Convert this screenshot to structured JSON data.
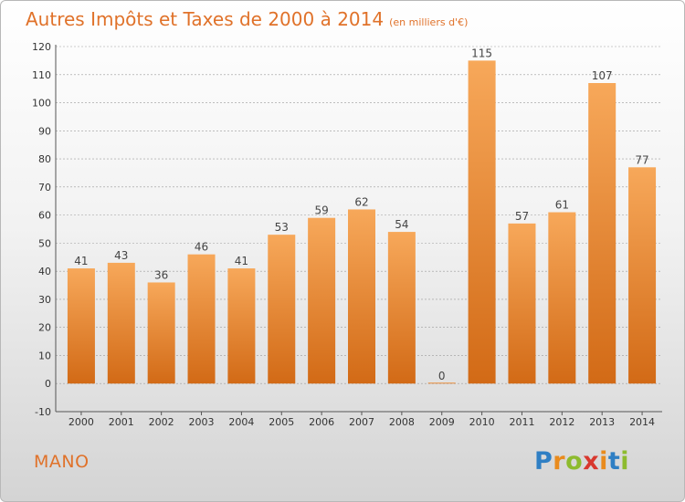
{
  "header": {
    "title": "Autres Impôts et Taxes de 2000 à 2014",
    "unit": "(en milliers d'€)"
  },
  "commune": "MANO",
  "logo": {
    "letters": [
      "P",
      "r",
      "o",
      "x",
      "i",
      "t",
      "i"
    ],
    "colors": [
      "#2f7fc4",
      "#e98b1d",
      "#8dbb2e",
      "#d8382e",
      "#e98b1d",
      "#2f7fc4",
      "#8dbb2e"
    ]
  },
  "chart_data": {
    "type": "bar",
    "title": "Autres Impôts et Taxes de 2000 à 2014",
    "subtitle": "(en milliers d'€)",
    "categories": [
      "2000",
      "2001",
      "2002",
      "2003",
      "2004",
      "2005",
      "2006",
      "2007",
      "2008",
      "2009",
      "2010",
      "2011",
      "2012",
      "2013",
      "2014"
    ],
    "values": [
      41,
      43,
      36,
      46,
      41,
      53,
      59,
      62,
      54,
      0,
      115,
      57,
      61,
      107,
      77
    ],
    "data_labels": [
      "41",
      "43",
      "36",
      "46",
      "41",
      "53",
      "59",
      "62",
      "54",
      "0",
      "115",
      "57",
      "61",
      "107",
      "77"
    ],
    "yticks": [
      "-10",
      "0",
      "10",
      "20",
      "30",
      "40",
      "50",
      "60",
      "70",
      "80",
      "90",
      "100",
      "110",
      "120"
    ],
    "ylim": [
      -10,
      120
    ],
    "grid": true,
    "bar_color": "#f0913a"
  }
}
